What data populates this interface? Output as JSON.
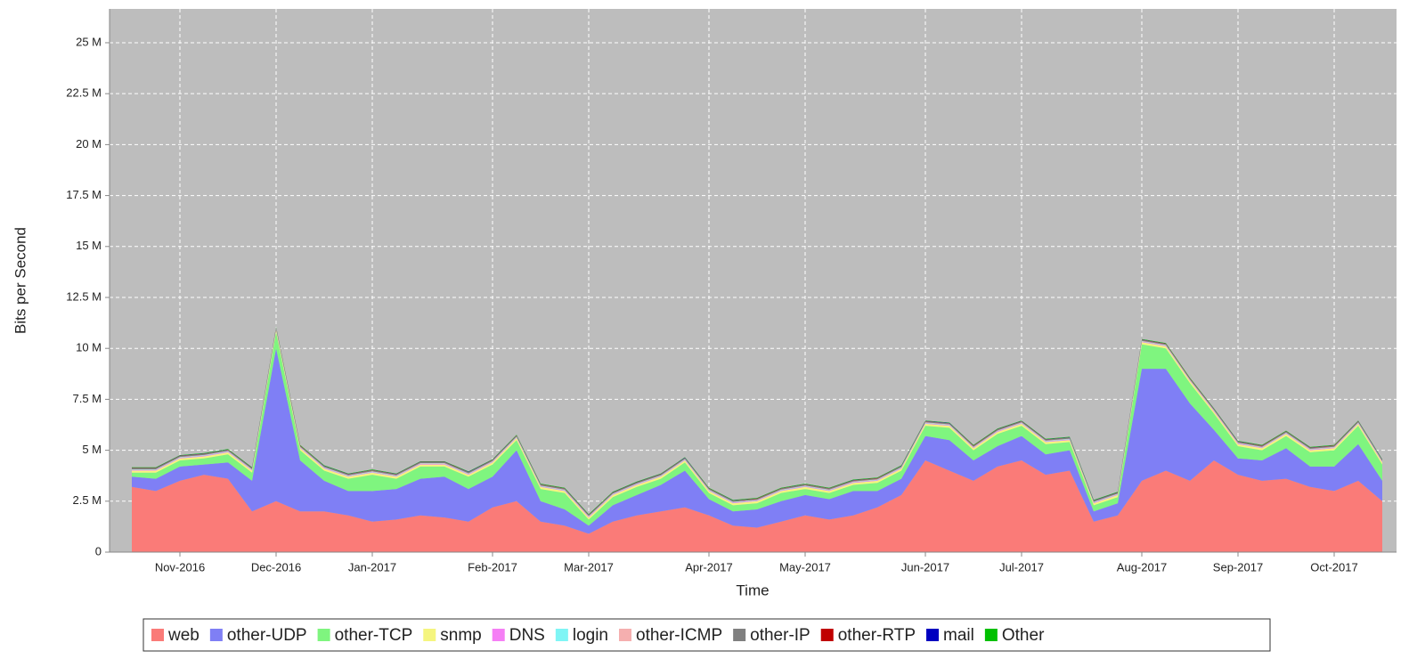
{
  "chart_data": {
    "type": "area",
    "stacked": true,
    "x_label": "Time",
    "y_label": "Bits per Second",
    "categories": [
      null,
      null,
      "Nov-2016",
      null,
      null,
      null,
      "Dec-2016",
      null,
      null,
      null,
      "Jan-2017",
      null,
      null,
      null,
      null,
      "Feb-2017",
      null,
      null,
      null,
      "Mar-2017",
      null,
      null,
      null,
      null,
      "Apr-2017",
      null,
      null,
      null,
      "May-2017",
      null,
      null,
      null,
      null,
      "Jun-2017",
      null,
      null,
      null,
      "Jul-2017",
      null,
      null,
      null,
      null,
      "Aug-2017",
      null,
      null,
      null,
      "Sep-2017",
      null,
      null,
      null,
      "Oct-2017",
      null,
      null
    ],
    "ylim": [
      0,
      26.66
    ],
    "yticks": [
      0,
      {
        "value": 2.5,
        "label": "2.5 M"
      },
      {
        "value": 5,
        "label": "5 M"
      },
      {
        "value": 7.5,
        "label": "7.5 M"
      },
      {
        "value": 10,
        "label": "10 M"
      },
      {
        "value": 12.5,
        "label": "12.5 M"
      },
      {
        "value": 15,
        "label": "15 M"
      },
      {
        "value": 17.5,
        "label": "17.5 M"
      },
      {
        "value": 20,
        "label": "20 M"
      },
      {
        "value": 22.5,
        "label": "22.5 M"
      },
      {
        "value": 25,
        "label": "25 M"
      }
    ],
    "grid": true,
    "legend": "bottom",
    "series": [
      {
        "name": "web",
        "color": "#fa7b78",
        "values": [
          3.2,
          3.0,
          3.5,
          3.8,
          3.6,
          2.0,
          2.5,
          2.0,
          2.0,
          1.8,
          1.5,
          1.6,
          1.8,
          1.7,
          1.5,
          2.2,
          2.5,
          1.5,
          1.3,
          0.9,
          1.5,
          1.8,
          2.0,
          2.2,
          1.8,
          1.3,
          1.2,
          1.5,
          1.8,
          1.6,
          1.8,
          2.2,
          2.8,
          4.5,
          4.0,
          3.5,
          4.2,
          4.5,
          3.8,
          4.0,
          1.5,
          1.8,
          3.5,
          4.0,
          3.5,
          4.5,
          3.8,
          3.5,
          3.6,
          3.2,
          3.0,
          3.5,
          2.5
        ]
      },
      {
        "name": "other-UDP",
        "color": "#7f7ff5",
        "values": [
          0.5,
          0.6,
          0.7,
          0.5,
          0.8,
          1.5,
          7.5,
          2.5,
          1.5,
          1.2,
          1.5,
          1.5,
          1.8,
          2.0,
          1.6,
          1.5,
          2.5,
          1.0,
          0.8,
          0.4,
          0.8,
          1.0,
          1.3,
          1.8,
          0.8,
          0.7,
          0.9,
          1.0,
          1.0,
          1.0,
          1.2,
          0.8,
          0.8,
          1.2,
          1.5,
          1.0,
          1.0,
          1.2,
          1.0,
          1.0,
          0.5,
          0.6,
          5.5,
          5.0,
          3.8,
          1.5,
          0.8,
          1.0,
          1.5,
          1.0,
          1.2,
          1.8,
          1.0
        ]
      },
      {
        "name": "other-TCP",
        "color": "#7ff57f",
        "values": [
          0.2,
          0.3,
          0.3,
          0.3,
          0.4,
          0.4,
          0.8,
          0.5,
          0.5,
          0.6,
          0.8,
          0.5,
          0.6,
          0.5,
          0.6,
          0.6,
          0.5,
          0.6,
          0.8,
          0.3,
          0.4,
          0.4,
          0.3,
          0.4,
          0.3,
          0.3,
          0.3,
          0.4,
          0.3,
          0.3,
          0.3,
          0.4,
          0.4,
          0.5,
          0.6,
          0.5,
          0.6,
          0.5,
          0.5,
          0.4,
          0.3,
          0.3,
          1.2,
          1.0,
          1.0,
          0.8,
          0.6,
          0.5,
          0.6,
          0.7,
          0.8,
          0.9,
          0.8
        ]
      },
      {
        "name": "snmp",
        "color": "#f5f57f",
        "values": [
          0.1,
          0.1,
          0.1,
          0.1,
          0.1,
          0.1,
          0.1,
          0.1,
          0.1,
          0.1,
          0.1,
          0.1,
          0.1,
          0.1,
          0.1,
          0.1,
          0.1,
          0.1,
          0.1,
          0.1,
          0.1,
          0.1,
          0.1,
          0.1,
          0.1,
          0.1,
          0.1,
          0.1,
          0.1,
          0.1,
          0.1,
          0.1,
          0.1,
          0.1,
          0.1,
          0.1,
          0.1,
          0.1,
          0.1,
          0.1,
          0.1,
          0.1,
          0.1,
          0.1,
          0.1,
          0.1,
          0.1,
          0.1,
          0.1,
          0.1,
          0.1,
          0.1,
          0.1
        ]
      },
      {
        "name": "DNS",
        "color": "#f57ff5",
        "values": [
          0.03,
          0.03,
          0.03,
          0.03,
          0.03,
          0.03,
          0.03,
          0.03,
          0.03,
          0.03,
          0.03,
          0.03,
          0.03,
          0.03,
          0.03,
          0.03,
          0.03,
          0.03,
          0.03,
          0.03,
          0.03,
          0.03,
          0.03,
          0.03,
          0.03,
          0.03,
          0.03,
          0.03,
          0.03,
          0.03,
          0.03,
          0.03,
          0.03,
          0.03,
          0.03,
          0.03,
          0.03,
          0.03,
          0.03,
          0.03,
          0.03,
          0.03,
          0.03,
          0.03,
          0.03,
          0.03,
          0.03,
          0.03,
          0.03,
          0.03,
          0.03,
          0.03,
          0.03
        ]
      },
      {
        "name": "login",
        "color": "#7ff5f5",
        "values": [
          0.02,
          0.02,
          0.02,
          0.02,
          0.02,
          0.02,
          0.02,
          0.02,
          0.02,
          0.02,
          0.02,
          0.02,
          0.02,
          0.02,
          0.02,
          0.02,
          0.02,
          0.02,
          0.02,
          0.02,
          0.02,
          0.02,
          0.02,
          0.02,
          0.02,
          0.02,
          0.02,
          0.02,
          0.02,
          0.02,
          0.02,
          0.02,
          0.02,
          0.02,
          0.02,
          0.02,
          0.02,
          0.02,
          0.02,
          0.02,
          0.02,
          0.02,
          0.02,
          0.02,
          0.02,
          0.02,
          0.02,
          0.02,
          0.02,
          0.02,
          0.02,
          0.02,
          0.02
        ]
      },
      {
        "name": "other-ICMP",
        "color": "#f5afaf",
        "values": [
          0.02,
          0.02,
          0.02,
          0.02,
          0.02,
          0.02,
          0.02,
          0.02,
          0.02,
          0.02,
          0.02,
          0.02,
          0.02,
          0.02,
          0.02,
          0.02,
          0.02,
          0.02,
          0.02,
          0.02,
          0.02,
          0.02,
          0.02,
          0.02,
          0.02,
          0.02,
          0.02,
          0.02,
          0.02,
          0.02,
          0.02,
          0.02,
          0.02,
          0.02,
          0.02,
          0.02,
          0.02,
          0.02,
          0.02,
          0.02,
          0.02,
          0.02,
          0.02,
          0.02,
          0.02,
          0.02,
          0.02,
          0.02,
          0.02,
          0.02,
          0.02,
          0.02,
          0.02
        ]
      },
      {
        "name": "other-IP",
        "color": "#808080",
        "values": [
          0.05,
          0.05,
          0.05,
          0.05,
          0.05,
          0.05,
          0.05,
          0.05,
          0.05,
          0.05,
          0.05,
          0.05,
          0.05,
          0.05,
          0.05,
          0.05,
          0.05,
          0.05,
          0.05,
          0.05,
          0.05,
          0.05,
          0.05,
          0.05,
          0.05,
          0.05,
          0.05,
          0.05,
          0.05,
          0.05,
          0.05,
          0.05,
          0.05,
          0.05,
          0.05,
          0.05,
          0.05,
          0.05,
          0.05,
          0.05,
          0.05,
          0.05,
          0.05,
          0.05,
          0.05,
          0.05,
          0.05,
          0.05,
          0.05,
          0.05,
          0.05,
          0.05,
          0.05
        ]
      },
      {
        "name": "other-RTP",
        "color": "#c00000",
        "values": [
          0.01,
          0.01,
          0.01,
          0.01,
          0.01,
          0.01,
          0.01,
          0.01,
          0.01,
          0.01,
          0.01,
          0.01,
          0.01,
          0.01,
          0.01,
          0.01,
          0.01,
          0.01,
          0.01,
          0.01,
          0.01,
          0.01,
          0.01,
          0.01,
          0.01,
          0.01,
          0.01,
          0.01,
          0.01,
          0.01,
          0.01,
          0.01,
          0.01,
          0.01,
          0.01,
          0.01,
          0.01,
          0.01,
          0.01,
          0.01,
          0.01,
          0.01,
          0.01,
          0.01,
          0.01,
          0.01,
          0.01,
          0.01,
          0.01,
          0.01,
          0.01,
          0.01,
          0.01
        ]
      },
      {
        "name": "mail",
        "color": "#0000c0",
        "values": [
          0.01,
          0.01,
          0.01,
          0.01,
          0.01,
          0.01,
          0.01,
          0.01,
          0.01,
          0.01,
          0.01,
          0.01,
          0.01,
          0.01,
          0.01,
          0.01,
          0.01,
          0.01,
          0.01,
          0.01,
          0.01,
          0.01,
          0.01,
          0.01,
          0.01,
          0.01,
          0.01,
          0.01,
          0.01,
          0.01,
          0.01,
          0.01,
          0.01,
          0.01,
          0.01,
          0.01,
          0.01,
          0.01,
          0.01,
          0.01,
          0.01,
          0.01,
          0.01,
          0.01,
          0.01,
          0.01,
          0.01,
          0.01,
          0.01,
          0.01,
          0.01,
          0.01,
          0.01
        ]
      },
      {
        "name": "Other",
        "color": "#00c000",
        "values": [
          0.02,
          0.02,
          0.02,
          0.02,
          0.02,
          0.02,
          0.02,
          0.02,
          0.02,
          0.02,
          0.02,
          0.02,
          0.02,
          0.02,
          0.02,
          0.02,
          0.02,
          0.02,
          0.02,
          0.02,
          0.02,
          0.02,
          0.02,
          0.02,
          0.02,
          0.02,
          0.02,
          0.02,
          0.02,
          0.02,
          0.02,
          0.02,
          0.02,
          0.02,
          0.02,
          0.02,
          0.02,
          0.02,
          0.02,
          0.02,
          0.02,
          0.02,
          0.02,
          0.02,
          0.02,
          0.02,
          0.02,
          0.02,
          0.02,
          0.02,
          0.02,
          0.02,
          0.02
        ]
      }
    ]
  }
}
